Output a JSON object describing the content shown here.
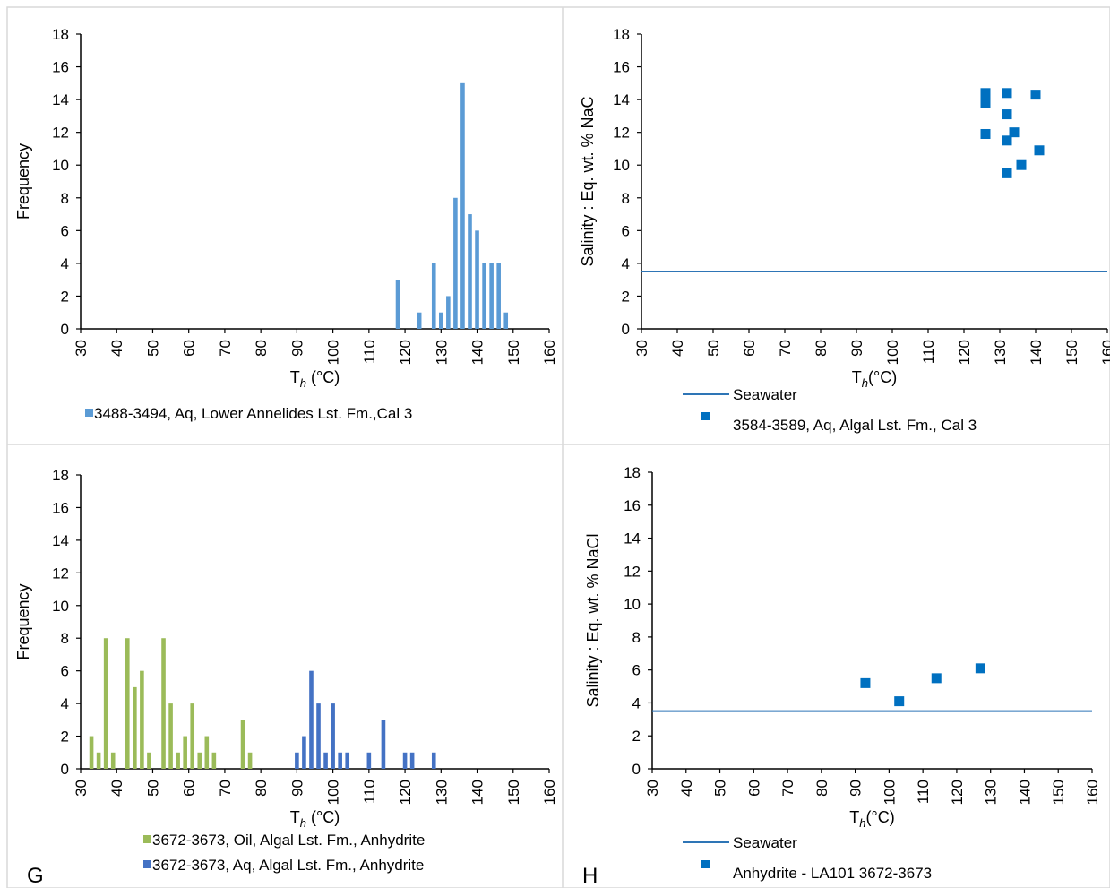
{
  "colors": {
    "blue_light": "#5b9bd5",
    "blue_dark": "#4472c4",
    "green": "#9bbb59",
    "marker": "#0070c0",
    "seawater": "#2e75b6",
    "border": "#d9d9d9"
  },
  "chart_data": [
    {
      "type": "bar",
      "ylabel": "Frequency",
      "xlabel": "T(h) (°C)",
      "xlim": [
        30,
        160
      ],
      "ylim": [
        0,
        18
      ],
      "xticks": [
        "30",
        "40",
        "50",
        "60",
        "70",
        "80",
        "90",
        "100",
        "110",
        "120",
        "130",
        "140",
        "150",
        "160"
      ],
      "yticks": [
        "0",
        "2",
        "4",
        "6",
        "8",
        "10",
        "12",
        "14",
        "16",
        "18"
      ],
      "series": [
        {
          "name": "3488-3494, Aq, Lower Annelides Lst. Fm.,Cal 3",
          "x": [
            118,
            124,
            128,
            130,
            132,
            134,
            136,
            138,
            140,
            142,
            144,
            146,
            148
          ],
          "values": [
            3,
            1,
            4,
            1,
            2,
            8,
            15,
            7,
            6,
            4,
            4,
            4,
            1
          ]
        }
      ]
    },
    {
      "type": "scatter",
      "ylabel": "Salinity : Eq. wt. % NaC",
      "xlabel": "T(h)(°C)",
      "xlim": [
        30,
        160
      ],
      "ylim": [
        0,
        18
      ],
      "xticks": [
        "30",
        "40",
        "50",
        "60",
        "70",
        "80",
        "90",
        "100",
        "110",
        "120",
        "130",
        "140",
        "150",
        "160"
      ],
      "yticks": [
        "0",
        "2",
        "4",
        "6",
        "8",
        "10",
        "12",
        "14",
        "16",
        "18"
      ],
      "seawater": {
        "name": "Seawater",
        "y": 3.5
      },
      "series": [
        {
          "name": "3584-3589, Aq, Algal Lst. Fm., Cal 3",
          "points": [
            [
              126,
              14.4
            ],
            [
              126,
              14.0
            ],
            [
              126,
              13.8
            ],
            [
              126,
              11.9
            ],
            [
              132,
              14.4
            ],
            [
              132,
              13.1
            ],
            [
              132,
              11.5
            ],
            [
              132,
              9.5
            ],
            [
              134,
              12.0
            ],
            [
              136,
              10.0
            ],
            [
              140,
              14.3
            ],
            [
              141,
              10.9
            ]
          ]
        }
      ]
    },
    {
      "type": "bar",
      "ylabel": "Frequency",
      "xlabel": "T(h) (°C)",
      "xlim": [
        30,
        160
      ],
      "ylim": [
        0,
        18
      ],
      "xticks": [
        "30",
        "40",
        "50",
        "60",
        "70",
        "80",
        "90",
        "100",
        "110",
        "120",
        "130",
        "140",
        "150",
        "160"
      ],
      "yticks": [
        "0",
        "2",
        "4",
        "6",
        "8",
        "10",
        "12",
        "14",
        "16",
        "18"
      ],
      "series": [
        {
          "name": "3672-3673, Oil, Algal Lst. Fm., Anhydrite",
          "x": [
            33,
            35,
            37,
            39,
            43,
            45,
            47,
            49,
            53,
            55,
            57,
            59,
            61,
            63,
            65,
            67,
            75,
            77
          ],
          "values": [
            2,
            1,
            8,
            1,
            8,
            5,
            6,
            1,
            8,
            4,
            1,
            2,
            4,
            1,
            2,
            1,
            3,
            1
          ]
        },
        {
          "name": "3672-3673, Aq, Algal Lst. Fm., Anhydrite",
          "x": [
            90,
            92,
            94,
            96,
            98,
            100,
            102,
            104,
            110,
            114,
            120,
            122,
            128
          ],
          "values": [
            1,
            2,
            6,
            4,
            1,
            4,
            1,
            1,
            1,
            3,
            1,
            1,
            1
          ]
        }
      ]
    },
    {
      "type": "scatter",
      "ylabel": "Salinity : Eq. wt. % NaCl",
      "xlabel": "T(h)(°C)",
      "xlim": [
        30,
        160
      ],
      "ylim": [
        0,
        18
      ],
      "xticks": [
        "30",
        "40",
        "50",
        "60",
        "70",
        "80",
        "90",
        "100",
        "110",
        "120",
        "130",
        "140",
        "150",
        "160"
      ],
      "yticks": [
        "0",
        "2",
        "4",
        "6",
        "8",
        "10",
        "12",
        "14",
        "16",
        "18"
      ],
      "seawater": {
        "name": "Seawater",
        "y": 3.5
      },
      "series": [
        {
          "name": "Anhydrite - LA101 3672-3673",
          "points": [
            [
              93,
              5.2
            ],
            [
              103,
              4.1
            ],
            [
              114,
              5.5
            ],
            [
              127,
              6.1
            ]
          ]
        }
      ]
    }
  ],
  "panel_labels": {
    "g": "G",
    "h": "H"
  }
}
